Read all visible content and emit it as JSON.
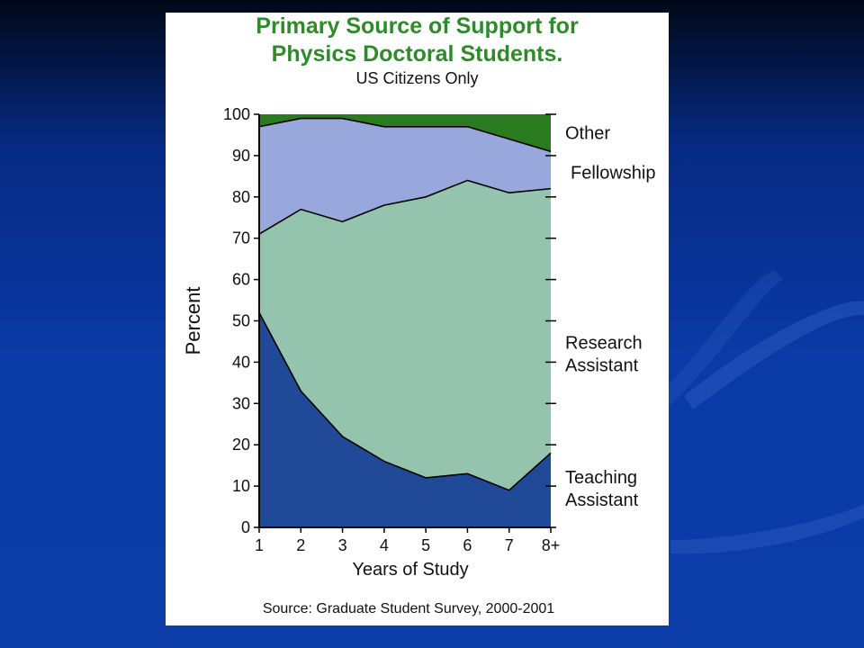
{
  "slide": {
    "title_line1": "Primary Source of Support for",
    "title_line2": "Physics Doctoral Students.",
    "subtitle": "US Citizens Only",
    "source": "Source: Graduate Student Survey, 2000-2001"
  },
  "colors": {
    "background": "#0b3ca8",
    "title": "#2f8a2a",
    "teaching_assistant": "#204a98",
    "research_assistant": "#94c4ae",
    "fellowship": "#98a8dc",
    "other": "#2a7a1f"
  },
  "chart_data": {
    "type": "area",
    "stacked": true,
    "title": "Primary Source of Support for Physics Doctoral Students.",
    "subtitle": "US Citizens Only",
    "xlabel": "Years of Study",
    "ylabel": "Percent",
    "categories": [
      "1",
      "2",
      "3",
      "4",
      "5",
      "6",
      "7",
      "8+"
    ],
    "ylim": [
      0,
      100
    ],
    "yticks": [
      0,
      10,
      20,
      30,
      40,
      50,
      60,
      70,
      80,
      90,
      100
    ],
    "grid": false,
    "legend": "right-side labels",
    "series": [
      {
        "name": "Teaching Assistant",
        "label_lines": [
          "Teaching",
          "Assistant"
        ],
        "values": [
          52,
          33,
          22,
          16,
          12,
          13,
          9,
          18
        ]
      },
      {
        "name": "Research Assistant",
        "label_lines": [
          "Research",
          "Assistant"
        ],
        "values": [
          19,
          44,
          52,
          62,
          68,
          71,
          72,
          64
        ]
      },
      {
        "name": "Fellowship",
        "label_lines": [
          "Fellowship"
        ],
        "values": [
          26,
          22,
          25,
          19,
          17,
          13,
          13,
          9
        ]
      },
      {
        "name": "Other",
        "label_lines": [
          "Other"
        ],
        "values": [
          3,
          1,
          1,
          3,
          3,
          3,
          6,
          9
        ]
      }
    ]
  }
}
